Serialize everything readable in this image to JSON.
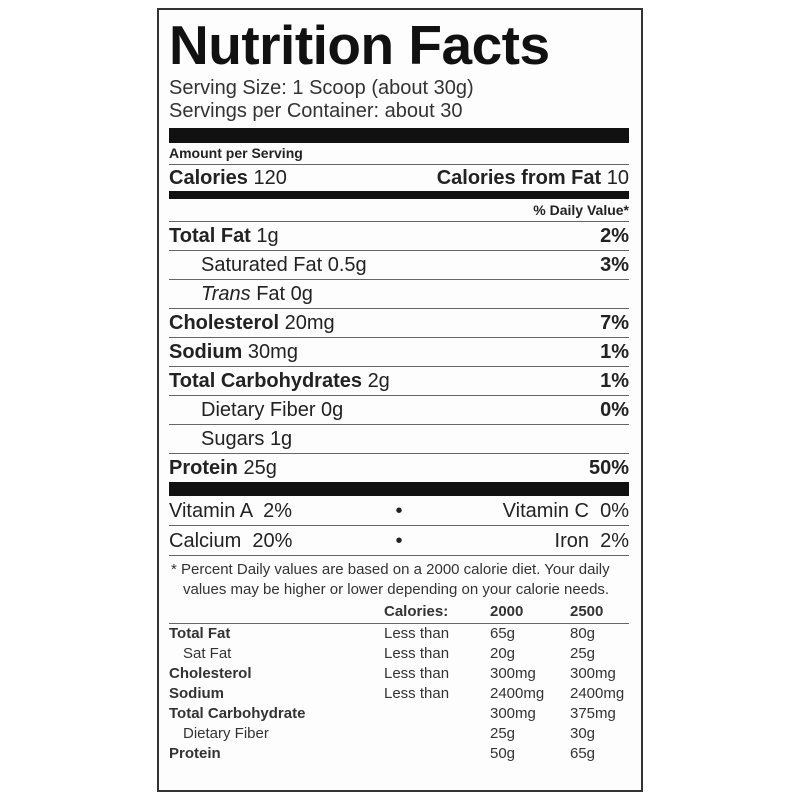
{
  "title": "Nutrition Facts",
  "serving_size": "Serving Size: 1 Scoop (about 30g)",
  "servings_per_container": "Servings per Container: about 30",
  "amount_per_serving": "Amount per Serving",
  "calories": {
    "label": "Calories",
    "value": "120",
    "fat_label": "Calories from Fat",
    "fat_value": "10"
  },
  "daily_value_header": "% Daily Value*",
  "nutrients": [
    {
      "name": "Total Fat",
      "amount": "1g",
      "dv": "2%",
      "bold": true,
      "indent": false
    },
    {
      "name": "Saturated Fat",
      "amount": "0.5g",
      "dv": "3%",
      "bold": false,
      "indent": true
    },
    {
      "name": "Trans",
      "name_suffix": "Fat",
      "amount": "0g",
      "dv": "",
      "bold": false,
      "indent": true,
      "italic_prefix": true
    },
    {
      "name": "Cholesterol",
      "amount": "20mg",
      "dv": "7%",
      "bold": true,
      "indent": false
    },
    {
      "name": "Sodium",
      "amount": "30mg",
      "dv": "1%",
      "bold": true,
      "indent": false
    },
    {
      "name": "Total Carbohydrates",
      "amount": "2g",
      "dv": "1%",
      "bold": true,
      "indent": false
    },
    {
      "name": "Dietary Fiber",
      "amount": "0g",
      "dv": "0%",
      "bold": false,
      "indent": true
    },
    {
      "name": "Sugars",
      "amount": "1g",
      "dv": "",
      "bold": false,
      "indent": true
    },
    {
      "name": "Protein",
      "amount": "25g",
      "dv": "50%",
      "bold": true,
      "indent": false
    }
  ],
  "vitamins": [
    {
      "left": "Vitamin A  2%",
      "right": "Vitamin C  0%"
    },
    {
      "left": "Calcium  20%",
      "right": "Iron  2%"
    }
  ],
  "bullet": "•",
  "footnote": "* Percent Daily values are based on a 2000 calorie diet. Your daily values may be higher or lower depending on your calorie needs.",
  "reference_table": {
    "headers": [
      "",
      "Calories:",
      "2000",
      "2500"
    ],
    "rows": [
      {
        "name": "Total Fat",
        "qual": "Less than",
        "v2000": "65g",
        "v2500": "80g",
        "bold": true
      },
      {
        "name": "Sat Fat",
        "qual": "Less than",
        "v2000": "20g",
        "v2500": "25g",
        "bold": false
      },
      {
        "name": "Cholesterol",
        "qual": "Less than",
        "v2000": "300mg",
        "v2500": "300mg",
        "bold": true
      },
      {
        "name": "Sodium",
        "qual": "Less than",
        "v2000": "2400mg",
        "v2500": "2400mg",
        "bold": true
      },
      {
        "name": "Total Carbohydrate",
        "qual": "",
        "v2000": "300mg",
        "v2500": "375mg",
        "bold": true
      },
      {
        "name": "Dietary Fiber",
        "qual": "",
        "v2000": "25g",
        "v2500": "30g",
        "bold": false
      },
      {
        "name": "Protein",
        "qual": "",
        "v2000": "50g",
        "v2500": "65g",
        "bold": true
      }
    ]
  }
}
